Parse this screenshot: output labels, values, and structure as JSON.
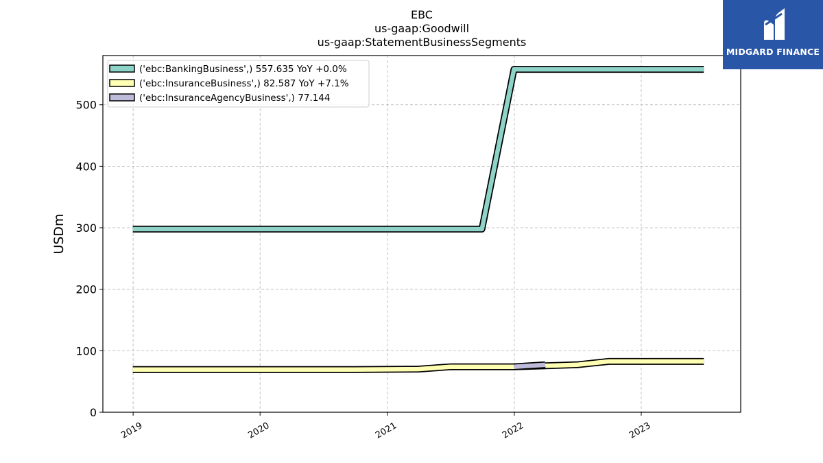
{
  "chart_data": {
    "type": "line",
    "title_lines": [
      "EBC",
      "us-gaap:Goodwill",
      "us-gaap:StatementBusinessSegments"
    ],
    "xlabel": "",
    "ylabel": "USDm",
    "x_ticks": [
      "2019",
      "2020",
      "2021",
      "2022",
      "2023"
    ],
    "y_ticks": [
      0,
      100,
      200,
      300,
      400,
      500
    ],
    "ylim": [
      0,
      580
    ],
    "xlim": [
      "2018-10-06",
      "2023-10-14"
    ],
    "grid": true,
    "legend_position": "upper-left",
    "series": [
      {
        "name": "('ebc:BankingBusiness',) 557.635 YoY +0.0%",
        "color": "#8dd3c7",
        "points": [
          [
            "2018-12-31",
            297.8
          ],
          [
            "2019-12-31",
            297.8
          ],
          [
            "2020-12-31",
            297.8
          ],
          [
            "2021-09-30",
            297.8
          ],
          [
            "2021-12-31",
            557.6
          ],
          [
            "2022-12-31",
            557.6
          ],
          [
            "2023-06-30",
            557.6
          ]
        ]
      },
      {
        "name": "('ebc:InsuranceBusiness',) 82.587 YoY +7.1%",
        "color": "#ffffb3",
        "points": [
          [
            "2018-12-31",
            69.5
          ],
          [
            "2019-12-31",
            69.5
          ],
          [
            "2020-09-30",
            69.5
          ],
          [
            "2021-03-31",
            70.2
          ],
          [
            "2021-06-30",
            73.8
          ],
          [
            "2021-12-31",
            73.8
          ],
          [
            "2022-06-30",
            77.2
          ],
          [
            "2022-09-30",
            82.6
          ],
          [
            "2023-06-30",
            82.6
          ]
        ]
      },
      {
        "name": "('ebc:InsuranceAgencyBusiness',) 77.144",
        "color": "#bebada",
        "points": [
          [
            "2021-12-31",
            74.0
          ],
          [
            "2022-03-31",
            77.1
          ]
        ]
      }
    ]
  },
  "logo": {
    "text": "MIDGARD FINANCE",
    "color": "#2a56a8"
  }
}
